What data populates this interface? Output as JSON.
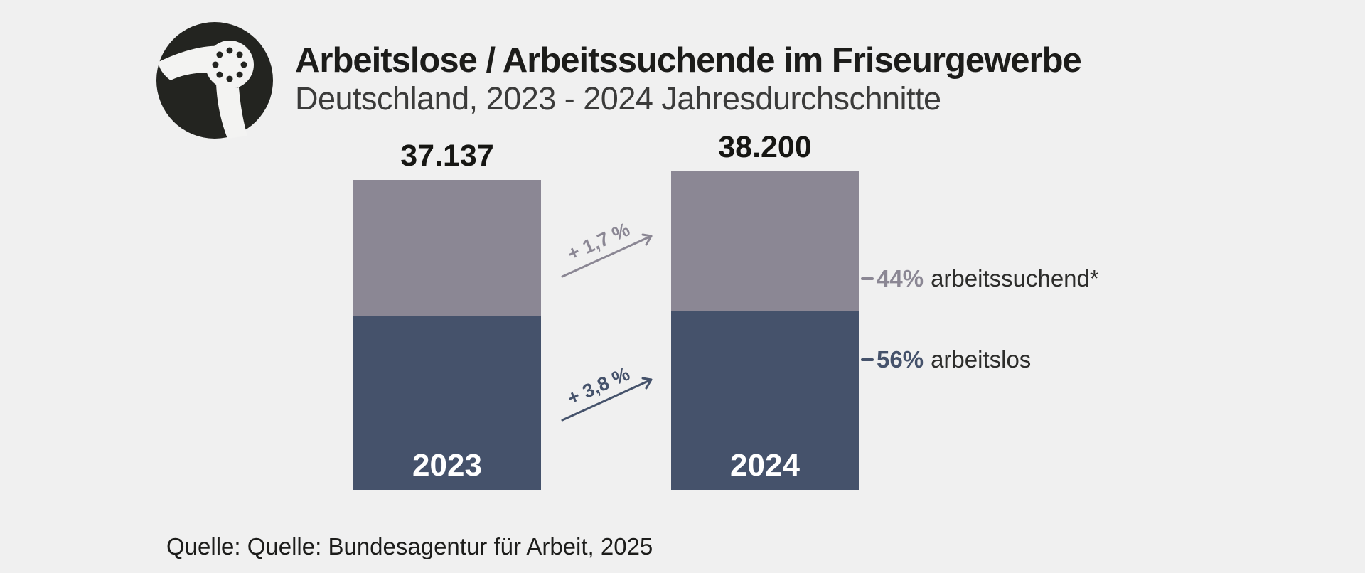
{
  "header": {
    "title": "Arbeitslose / Arbeitssuchende im Friseurgewerbe",
    "subtitle": "Deutschland, 2023 - 2024 Jahresdurchschnitte"
  },
  "logo": {
    "icon": "hair-dryer-icon",
    "bg_color": "#232420",
    "fg_color": "#F3F3F2"
  },
  "chart_data": {
    "type": "bar",
    "stacked": true,
    "grid": false,
    "legend_position": "right",
    "background_color": "#F0F0F0",
    "categories": [
      "2023",
      "2024"
    ],
    "totals": [
      37137,
      38200
    ],
    "total_labels": [
      "37.137",
      "38.200"
    ],
    "segments": [
      {
        "label": "arbeitslos",
        "pct": 56,
        "pct_label": "56%",
        "color": "#45526B"
      },
      {
        "label": "arbeitssuchend*",
        "pct": 44,
        "pct_label": "44%",
        "color": "#8B8794"
      }
    ],
    "change_annotations": [
      {
        "label": "+ 1,7 %",
        "position": "top",
        "color": "#8B8794"
      },
      {
        "label": "+ 3,8 %",
        "position": "bottom",
        "color": "#45526B"
      }
    ]
  },
  "source": {
    "text": "Quelle: Quelle: Bundesagentur für Arbeit, 2025"
  }
}
